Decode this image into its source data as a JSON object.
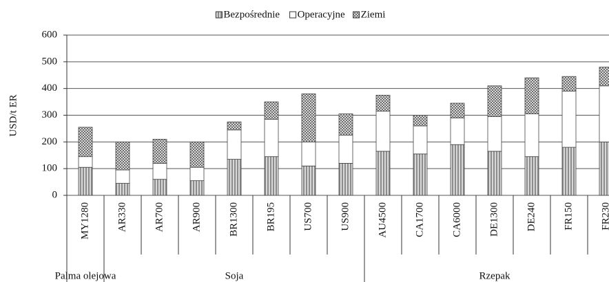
{
  "chart_data": {
    "type": "stacked_bar",
    "y_label": "USD/t ER",
    "categories": [
      "MY1280",
      "AR330",
      "AR700",
      "AR900",
      "BR1300",
      "BR195",
      "US700",
      "US900",
      "AU4500",
      "CA1700",
      "CA6000",
      "DE1300",
      "DE240",
      "FR150",
      "FR230"
    ],
    "groups": [
      {
        "name": "Palma olejowa",
        "span": 1
      },
      {
        "name": "Soja",
        "span": 7
      },
      {
        "name": "Rzepak",
        "span": 7
      }
    ],
    "series": [
      {
        "name": "Bezpośrednie",
        "color": "#8c8c8c",
        "values": [
          105,
          45,
          60,
          55,
          135,
          145,
          110,
          120,
          165,
          155,
          190,
          165,
          145,
          180,
          200
        ]
      },
      {
        "name": "Operacyjne",
        "color": "#ffffff",
        "values": [
          40,
          50,
          60,
          50,
          110,
          140,
          90,
          105,
          150,
          105,
          100,
          130,
          160,
          210,
          210
        ]
      },
      {
        "name": "Ziemi",
        "color": "#6e6e6e",
        "values": [
          110,
          105,
          90,
          95,
          30,
          65,
          180,
          80,
          60,
          40,
          55,
          115,
          135,
          55,
          70
        ]
      }
    ],
    "ylim": [
      0,
      600
    ],
    "yticks": [
      0,
      100,
      200,
      300,
      400,
      500,
      600
    ],
    "grid": true,
    "legend": "top"
  }
}
